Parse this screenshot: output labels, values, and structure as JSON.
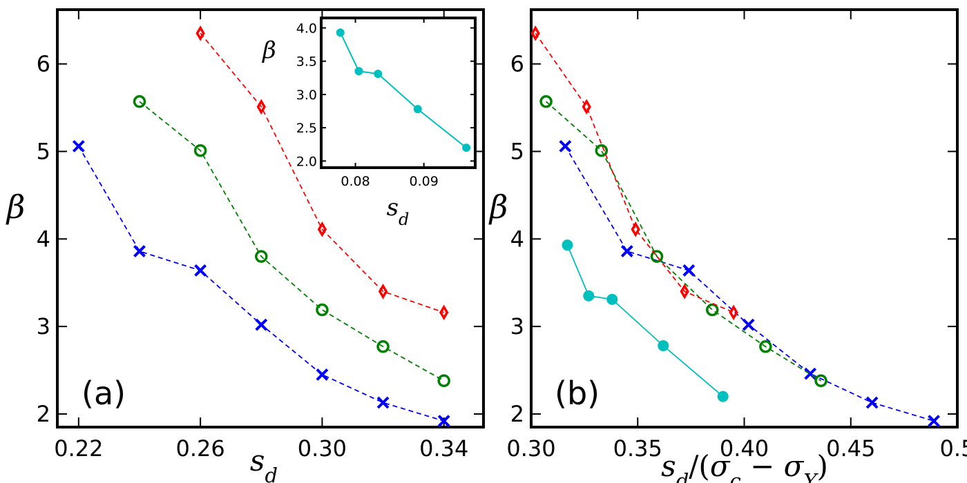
{
  "chart_data": [
    {
      "panel": "(a)",
      "type": "line",
      "xlabel": "s_d",
      "ylabel": "β",
      "xlim": [
        0.213,
        0.353
      ],
      "ylim": [
        1.85,
        6.62
      ],
      "xticks": [
        0.22,
        0.26,
        0.3,
        0.34
      ],
      "xtick_labels": [
        "0.22",
        "0.26",
        "0.30",
        "0.34"
      ],
      "yticks": [
        2,
        3,
        4,
        5,
        6
      ],
      "ytick_labels": [
        "2",
        "3",
        "4",
        "5",
        "6"
      ],
      "series": [
        {
          "color": "#0000ff",
          "marker": "x",
          "linestyle": "dashed",
          "x": [
            0.22,
            0.24,
            0.26,
            0.28,
            0.3,
            0.32,
            0.34
          ],
          "y": [
            5.06,
            3.86,
            3.64,
            3.02,
            2.45,
            2.13,
            1.92
          ]
        },
        {
          "color": "#008000",
          "marker": "o-open",
          "linestyle": "dashed",
          "x": [
            0.24,
            0.26,
            0.28,
            0.3,
            0.32,
            0.34
          ],
          "y": [
            5.57,
            5.01,
            3.8,
            3.19,
            2.77,
            2.38
          ]
        },
        {
          "color": "#ff0000",
          "marker": "diamond-open",
          "linestyle": "dashed",
          "x": [
            0.26,
            0.28,
            0.3,
            0.32,
            0.34
          ],
          "y": [
            6.35,
            5.51,
            4.11,
            3.4,
            3.16
          ]
        }
      ],
      "inset": {
        "type": "line",
        "xlabel": "s_d",
        "ylabel": "β",
        "xlim": [
          0.075,
          0.0975
        ],
        "ylim": [
          1.9,
          4.15
        ],
        "xticks": [
          0.08,
          0.09
        ],
        "xtick_labels": [
          "0.08",
          "0.09"
        ],
        "yticks": [
          2.0,
          2.5,
          3.0,
          3.5,
          4.0
        ],
        "ytick_labels": [
          "2.0",
          "2.5",
          "3.0",
          "3.5",
          "4.0"
        ],
        "series": [
          {
            "color": "#00bfbf",
            "marker": "o-filled",
            "linestyle": "solid",
            "x": [
              0.0778,
              0.0805,
              0.0833,
              0.0891,
              0.0962
            ],
            "y": [
              3.93,
              3.35,
              3.31,
              2.78,
              2.2
            ]
          }
        ]
      }
    },
    {
      "panel": "(b)",
      "type": "line",
      "xlabel": "s_d/(σ_c − σ_Y)",
      "ylabel": "β",
      "xlim": [
        0.3,
        0.5
      ],
      "ylim": [
        1.85,
        6.62
      ],
      "xticks": [
        0.3,
        0.35,
        0.4,
        0.45,
        0.5
      ],
      "xtick_labels": [
        "0.30",
        "0.35",
        "0.40",
        "0.45",
        "0.5"
      ],
      "yticks": [
        2,
        3,
        4,
        5,
        6
      ],
      "ytick_labels": [
        "2",
        "3",
        "4",
        "5",
        "6"
      ],
      "series": [
        {
          "color": "#0000ff",
          "marker": "x",
          "linestyle": "dashed",
          "x": [
            0.316,
            0.345,
            0.374,
            0.402,
            0.431,
            0.46,
            0.489
          ],
          "y": [
            5.06,
            3.86,
            3.64,
            3.02,
            2.46,
            2.13,
            1.92
          ]
        },
        {
          "color": "#008000",
          "marker": "o-open",
          "linestyle": "dashed",
          "x": [
            0.307,
            0.333,
            0.359,
            0.385,
            0.41,
            0.436
          ],
          "y": [
            5.57,
            5.01,
            3.8,
            3.19,
            2.77,
            2.38
          ]
        },
        {
          "color": "#ff0000",
          "marker": "diamond-open",
          "linestyle": "dashed",
          "x": [
            0.302,
            0.326,
            0.349,
            0.372,
            0.395
          ],
          "y": [
            6.35,
            5.51,
            4.11,
            3.4,
            3.16
          ]
        },
        {
          "color": "#00bfbf",
          "marker": "o-filled",
          "linestyle": "solid",
          "x": [
            0.317,
            0.327,
            0.338,
            0.362,
            0.39
          ],
          "y": [
            3.93,
            3.35,
            3.31,
            2.78,
            2.2
          ]
        }
      ]
    }
  ]
}
